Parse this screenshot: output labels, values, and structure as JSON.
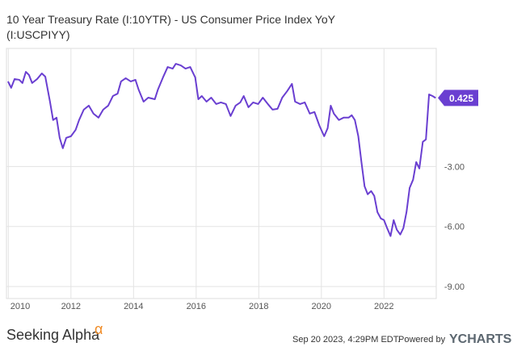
{
  "chart_data": {
    "type": "line",
    "title": "10 Year Treasury Rate (I:10YTR) - US Consumer Price Index YoY",
    "subtitle": "(I:USCPIYY)",
    "xlim": [
      2009.94,
      2023.67
    ],
    "ylim": [
      -9.6,
      2.9
    ],
    "xticks": [
      2010,
      2012,
      2014,
      2016,
      2018,
      2020,
      2022
    ],
    "yticks": [
      {
        "value": -9,
        "label": "-9.00"
      },
      {
        "value": -6,
        "label": "-6.00"
      },
      {
        "value": -3,
        "label": "-3.00"
      }
    ],
    "grid": true,
    "series": [
      {
        "name": "10 Year Treasury Rate (I:10YTR) - US Consumer Price Index YoY",
        "color": "#6a3fd1",
        "x": [
          2009.99,
          2010.09,
          2010.2,
          2010.35,
          2010.45,
          2010.56,
          2010.66,
          2010.76,
          2010.92,
          2011.07,
          2011.18,
          2011.33,
          2011.43,
          2011.54,
          2011.64,
          2011.74,
          2011.85,
          2012.0,
          2012.15,
          2012.26,
          2012.41,
          2012.57,
          2012.72,
          2012.88,
          2013.03,
          2013.19,
          2013.34,
          2013.49,
          2013.6,
          2013.75,
          2013.91,
          2014.06,
          2014.16,
          2014.32,
          2014.47,
          2014.68,
          2014.78,
          2014.94,
          2015.09,
          2015.25,
          2015.35,
          2015.51,
          2015.66,
          2015.81,
          2015.97,
          2016.07,
          2016.18,
          2016.33,
          2016.48,
          2016.64,
          2016.79,
          2016.95,
          2017.1,
          2017.26,
          2017.41,
          2017.52,
          2017.67,
          2017.82,
          2017.98,
          2018.13,
          2018.29,
          2018.44,
          2018.6,
          2018.75,
          2018.91,
          2019.06,
          2019.16,
          2019.32,
          2019.47,
          2019.63,
          2019.78,
          2019.94,
          2020.09,
          2020.2,
          2020.3,
          2020.4,
          2020.56,
          2020.71,
          2020.87,
          2020.97,
          2021.07,
          2021.18,
          2021.28,
          2021.38,
          2021.48,
          2021.59,
          2021.69,
          2021.79,
          2021.9,
          2022.0,
          2022.1,
          2022.21,
          2022.31,
          2022.41,
          2022.52,
          2022.62,
          2022.72,
          2022.82,
          2022.93,
          2023.03,
          2023.13,
          2023.24,
          2023.34,
          2023.44,
          2023.55,
          2023.65
        ],
        "values": [
          1.25,
          0.93,
          1.37,
          1.33,
          1.17,
          1.73,
          1.57,
          1.17,
          1.37,
          1.65,
          1.49,
          0.24,
          -0.68,
          -0.56,
          -1.57,
          -2.09,
          -1.57,
          -1.49,
          -1.17,
          -0.68,
          -0.16,
          0.04,
          -0.36,
          -0.56,
          -0.16,
          0.04,
          0.52,
          0.64,
          1.25,
          1.41,
          1.25,
          1.33,
          0.85,
          0.24,
          0.44,
          0.36,
          0.85,
          1.45,
          1.97,
          1.89,
          2.13,
          2.05,
          1.89,
          1.97,
          1.45,
          0.36,
          0.52,
          0.24,
          0.44,
          0.12,
          0.2,
          0.12,
          -0.48,
          0.04,
          0.2,
          0.52,
          -0.04,
          0.2,
          0.12,
          0.44,
          0.12,
          -0.16,
          -0.12,
          0.44,
          0.77,
          1.13,
          0.24,
          0.12,
          0.2,
          -0.36,
          -0.28,
          -0.97,
          -1.49,
          -1.09,
          0.04,
          -0.36,
          -0.68,
          -0.56,
          -0.56,
          -0.44,
          -0.68,
          -1.49,
          -2.78,
          -3.99,
          -4.39,
          -4.23,
          -4.47,
          -5.28,
          -5.6,
          -5.68,
          -6.08,
          -6.48,
          -5.68,
          -6.16,
          -6.4,
          -6.08,
          -5.28,
          -4.07,
          -3.66,
          -2.78,
          -3.1,
          -1.77,
          -1.65,
          0.6,
          0.52,
          0.425
        ]
      }
    ],
    "watermark": "Seeking Alpha",
    "logo_symbol": "α",
    "timestamp": "Sep 20 2023, 4:29PM EDT.",
    "powered_by": "Powered by",
    "brand": "YCHARTS"
  }
}
